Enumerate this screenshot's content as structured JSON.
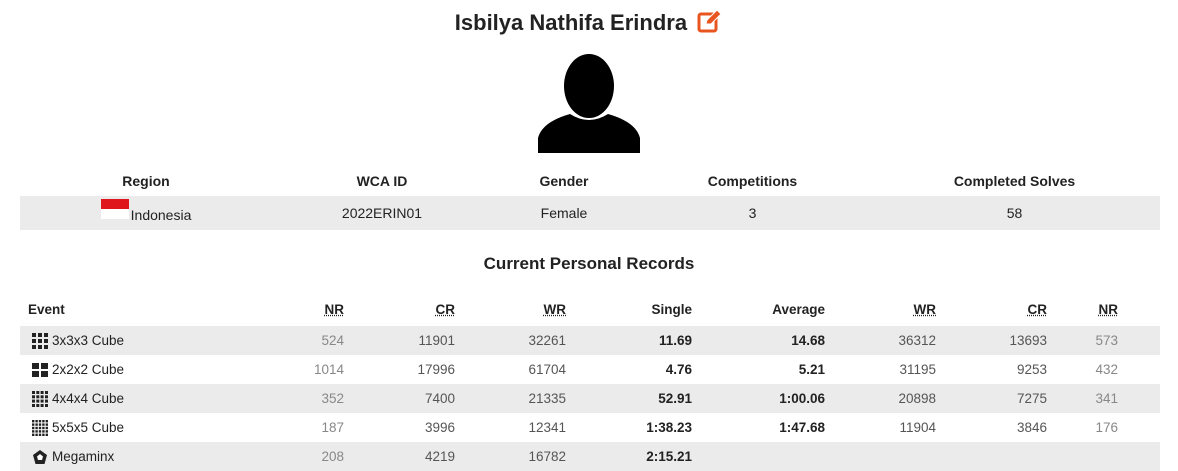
{
  "profile": {
    "name": "Isbilya Nathifa Erindra"
  },
  "info": {
    "headers": [
      "Region",
      "WCA ID",
      "Gender",
      "Competitions",
      "Completed Solves"
    ],
    "region": "Indonesia",
    "wca_id": "2022ERIN01",
    "gender": "Female",
    "competitions": "3",
    "completed_solves": "58"
  },
  "records": {
    "title": "Current Personal Records",
    "headers": {
      "event": "Event",
      "nr1": "NR",
      "cr1": "CR",
      "wr1": "WR",
      "single": "Single",
      "average": "Average",
      "wr2": "WR",
      "cr2": "CR",
      "nr2": "NR"
    },
    "rows": [
      {
        "event": "3x3x3 Cube",
        "icon": "cube-3x3-icon",
        "nr1": "524",
        "cr1": "11901",
        "wr1": "32261",
        "single": "11.69",
        "average": "14.68",
        "wr2": "36312",
        "cr2": "13693",
        "nr2": "573"
      },
      {
        "event": "2x2x2 Cube",
        "icon": "cube-2x2-icon",
        "nr1": "1014",
        "cr1": "17996",
        "wr1": "61704",
        "single": "4.76",
        "average": "5.21",
        "wr2": "31195",
        "cr2": "9253",
        "nr2": "432"
      },
      {
        "event": "4x4x4 Cube",
        "icon": "cube-4x4-icon",
        "nr1": "352",
        "cr1": "7400",
        "wr1": "21335",
        "single": "52.91",
        "average": "1:00.06",
        "wr2": "20898",
        "cr2": "7275",
        "nr2": "341"
      },
      {
        "event": "5x5x5 Cube",
        "icon": "cube-5x5-icon",
        "nr1": "187",
        "cr1": "3996",
        "wr1": "12341",
        "single": "1:38.23",
        "average": "1:47.68",
        "wr2": "11904",
        "cr2": "3846",
        "nr2": "176"
      },
      {
        "event": "Megaminx",
        "icon": "megaminx-icon",
        "nr1": "208",
        "cr1": "4219",
        "wr1": "16782",
        "single": "2:15.21",
        "average": "",
        "wr2": "",
        "cr2": "",
        "nr2": ""
      }
    ]
  },
  "colors": {
    "edit_accent": "#e8551f",
    "row_stripe": "#ebebeb",
    "flag_red": "#e0161d"
  }
}
